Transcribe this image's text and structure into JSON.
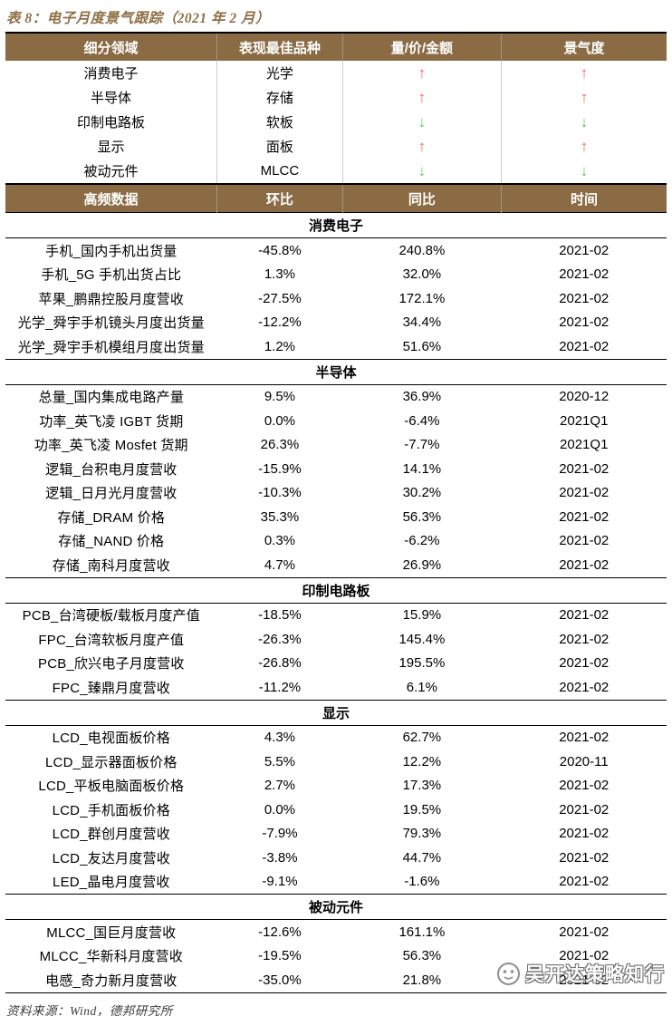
{
  "title": "表 8：电子月度景气跟踪（2021 年 2 月）",
  "colors": {
    "header_bg": "#8a6b44",
    "title_brown": "#8f6f45",
    "positive_red": "#fb1d1d",
    "negative_green": "#00b05f",
    "arrow_up_red": "#ff5d52",
    "arrow_down_green": "#62c06c"
  },
  "icons": {
    "up_arrow": "↑",
    "down_arrow": "↓"
  },
  "summary_table": {
    "headers": [
      "细分领域",
      "表现最佳品种",
      "量/价/金额",
      "景气度"
    ],
    "rows": [
      {
        "segment": "消费电子",
        "best_item": "光学",
        "volume_price_trend": "up",
        "sentiment_trend": "up"
      },
      {
        "segment": "半导体",
        "best_item": "存储",
        "volume_price_trend": "up",
        "sentiment_trend": "up"
      },
      {
        "segment": "印制电路板",
        "best_item": "软板",
        "volume_price_trend": "down",
        "sentiment_trend": "down"
      },
      {
        "segment": "显示",
        "best_item": "面板",
        "volume_price_trend": "up",
        "sentiment_trend": "up"
      },
      {
        "segment": "被动元件",
        "best_item": "MLCC",
        "volume_price_trend": "down",
        "sentiment_trend": "down"
      }
    ]
  },
  "detail_table": {
    "headers": [
      "高频数据",
      "环比",
      "同比",
      "时间"
    ],
    "sections": [
      {
        "name": "消费电子",
        "rows": [
          [
            "手机_国内手机出货量",
            "-45.8%",
            "240.8%",
            "2021-02"
          ],
          [
            "手机_5G 手机出货占比",
            "1.3%",
            "32.0%",
            "2021-02"
          ],
          [
            "苹果_鹏鼎控股月度营收",
            "-27.5%",
            "172.1%",
            "2021-02"
          ],
          [
            "光学_舜宇手机镜头月度出货量",
            "-12.2%",
            "34.4%",
            "2021-02"
          ],
          [
            "光学_舜宇手机模组月度出货量",
            "1.2%",
            "51.6%",
            "2021-02"
          ]
        ]
      },
      {
        "name": "半导体",
        "rows": [
          [
            "总量_国内集成电路产量",
            "9.5%",
            "36.9%",
            "2020-12"
          ],
          [
            "功率_英飞凌 IGBT 货期",
            "0.0%",
            "-6.4%",
            "2021Q1"
          ],
          [
            "功率_英飞凌 Mosfet 货期",
            "26.3%",
            "-7.7%",
            "2021Q1"
          ],
          [
            "逻辑_台积电月度营收",
            "-15.9%",
            "14.1%",
            "2021-02"
          ],
          [
            "逻辑_日月光月度营收",
            "-10.3%",
            "30.2%",
            "2021-02"
          ],
          [
            "存储_DRAM 价格",
            "35.3%",
            "56.3%",
            "2021-02"
          ],
          [
            "存储_NAND 价格",
            "0.3%",
            "-6.2%",
            "2021-02"
          ],
          [
            "存储_南科月度营收",
            "4.7%",
            "26.9%",
            "2021-02"
          ]
        ]
      },
      {
        "name": "印制电路板",
        "rows": [
          [
            "PCB_台湾硬板/载板月度产值",
            "-18.5%",
            "15.9%",
            "2021-02"
          ],
          [
            "FPC_台湾软板月度产值",
            "-26.3%",
            "145.4%",
            "2021-02"
          ],
          [
            "PCB_欣兴电子月度营收",
            "-26.8%",
            "195.5%",
            "2021-02"
          ],
          [
            "FPC_臻鼎月度营收",
            "-11.2%",
            "6.1%",
            "2021-02"
          ]
        ]
      },
      {
        "name": "显示",
        "rows": [
          [
            "LCD_电视面板价格",
            "4.3%",
            "62.7%",
            "2021-02"
          ],
          [
            "LCD_显示器面板价格",
            "5.5%",
            "12.2%",
            "2020-11"
          ],
          [
            "LCD_平板电脑面板价格",
            "2.7%",
            "17.3%",
            "2021-02"
          ],
          [
            "LCD_手机面板价格",
            "0.0%",
            "19.5%",
            "2021-02"
          ],
          [
            "LCD_群创月度营收",
            "-7.9%",
            "79.3%",
            "2021-02"
          ],
          [
            "LCD_友达月度营收",
            "-3.8%",
            "44.7%",
            "2021-02"
          ],
          [
            "LED_晶电月度营收",
            "-9.1%",
            "-1.6%",
            "2021-02"
          ]
        ]
      },
      {
        "name": "被动元件",
        "rows": [
          [
            "MLCC_国巨月度营收",
            "-12.6%",
            "161.1%",
            "2021-02"
          ],
          [
            "MLCC_华新科月度营收",
            "-19.5%",
            "56.3%",
            "2021-02"
          ],
          [
            "电感_奇力新月度营收",
            "-35.0%",
            "21.8%",
            "2021-02"
          ]
        ]
      }
    ]
  },
  "footer": "资料来源：Wind，德邦研究所",
  "watermark": "吴开达策略知行"
}
